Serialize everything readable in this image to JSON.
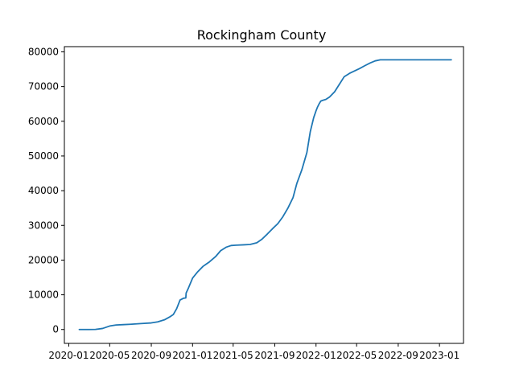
{
  "chart_data": {
    "type": "line",
    "title": "Rockingham County",
    "xlabel": "",
    "ylabel": "",
    "x_tick_labels": [
      "2020-01",
      "2020-05",
      "2020-09",
      "2021-01",
      "2021-05",
      "2021-09",
      "2022-01",
      "2022-05",
      "2022-09",
      "2023-01"
    ],
    "y_ticks": [
      0,
      10000,
      20000,
      30000,
      40000,
      50000,
      60000,
      70000,
      80000
    ],
    "xlim": [
      "2019-12-19",
      "2023-03-13"
    ],
    "ylim": [
      -4000,
      81500
    ],
    "grid": false,
    "series": [
      {
        "color": "#1f77b4",
        "x": [
          "2020-02-01",
          "2020-03-01",
          "2020-03-20",
          "2020-04-10",
          "2020-05-01",
          "2020-05-20",
          "2020-06-10",
          "2020-07-01",
          "2020-08-01",
          "2020-09-01",
          "2020-09-20",
          "2020-10-10",
          "2020-10-25",
          "2020-11-05",
          "2020-11-15",
          "2020-11-25",
          "2020-12-05",
          "2020-12-12",
          "2020-12-13",
          "2020-12-20",
          "2021-01-01",
          "2021-01-15",
          "2021-02-01",
          "2021-02-20",
          "2021-03-10",
          "2021-03-25",
          "2021-04-10",
          "2021-04-25",
          "2021-05-10",
          "2021-06-01",
          "2021-06-20",
          "2021-07-10",
          "2021-07-25",
          "2021-08-10",
          "2021-08-25",
          "2021-09-10",
          "2021-09-25",
          "2021-10-10",
          "2021-10-25",
          "2021-11-05",
          "2021-11-20",
          "2021-12-05",
          "2021-12-15",
          "2021-12-25",
          "2022-01-01",
          "2022-01-05",
          "2022-01-10",
          "2022-01-15",
          "2022-01-20",
          "2022-01-30",
          "2022-02-10",
          "2022-02-25",
          "2022-03-10",
          "2022-03-25",
          "2022-04-10",
          "2022-04-25",
          "2022-05-10",
          "2022-05-25",
          "2022-06-10",
          "2022-06-25",
          "2022-07-10",
          "2022-07-25",
          "2022-08-10",
          "2022-08-25",
          "2022-09-05",
          "2022-09-20",
          "2022-10-15",
          "2022-11-15",
          "2022-12-15",
          "2023-01-15",
          "2023-02-05"
        ],
        "y": [
          0,
          0,
          20,
          300,
          1000,
          1300,
          1400,
          1500,
          1700,
          1900,
          2200,
          2800,
          3600,
          4300,
          6000,
          8500,
          9000,
          9100,
          10500,
          12000,
          14800,
          16500,
          18200,
          19500,
          21000,
          22700,
          23700,
          24200,
          24300,
          24400,
          24500,
          25000,
          26000,
          27500,
          29000,
          30500,
          32500,
          35000,
          38000,
          42000,
          46000,
          51000,
          57000,
          61000,
          63000,
          64000,
          65000,
          65800,
          66000,
          66300,
          67000,
          68500,
          70500,
          72800,
          73800,
          74500,
          75200,
          76000,
          76800,
          77400,
          77700,
          77700,
          77700,
          77700,
          77700,
          77700,
          77700,
          77700,
          77700,
          77700,
          77700
        ]
      }
    ]
  }
}
